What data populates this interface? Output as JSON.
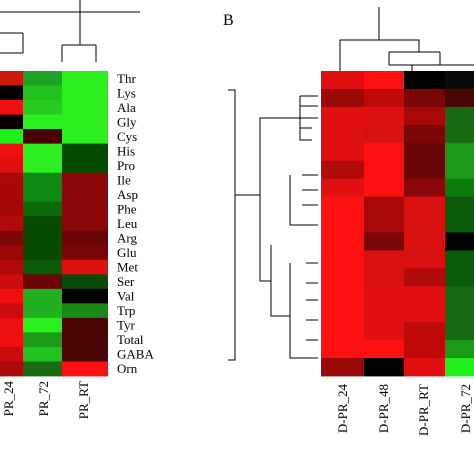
{
  "chart_data": [
    {
      "type": "heatmap",
      "panel": "",
      "rows": [
        "Thr",
        "Lys",
        "Ala",
        "Gly",
        "Cys",
        "His",
        "Pro",
        "Ile",
        "Asp",
        "Phe",
        "Leu",
        "Arg",
        "Glu",
        "Met",
        "Ser",
        "Val",
        "Trp",
        "Tyr",
        "Total",
        "GABA",
        "Orn"
      ],
      "columns": [
        "PR_24",
        "PR_72",
        "PR_RT"
      ],
      "column_labels_visible": [
        "PR_24",
        "PR_72",
        "PR_RT"
      ],
      "cell_colors": [
        [
          "#cc1a0a",
          "#1fa326",
          "#2bf01e"
        ],
        [
          "#050000",
          "#22c21f",
          "#2bf01e"
        ],
        [
          "#f01010",
          "#26cc22",
          "#2bf01e"
        ],
        [
          "#0a0000",
          "#2bf01e",
          "#2bf01e"
        ],
        [
          "#1ef01a",
          "#4a0000",
          "#2bf01e"
        ],
        [
          "#ee1010",
          "#2bf01e",
          "#064a06"
        ],
        [
          "#e01010",
          "#2bf01e",
          "#064a06"
        ],
        [
          "#a80808",
          "#0f8a10",
          "#8a0808"
        ],
        [
          "#a60808",
          "#0f8a10",
          "#8a0808"
        ],
        [
          "#a60808",
          "#0a6a0a",
          "#8a0808"
        ],
        [
          "#b00a0a",
          "#064a06",
          "#8a0808"
        ],
        [
          "#7a0606",
          "#064a06",
          "#6a0606"
        ],
        [
          "#9a0808",
          "#064a06",
          "#7a0606"
        ],
        [
          "#b00a0a",
          "#0a5a0a",
          "#e01010"
        ],
        [
          "#cc0c0c",
          "#6a0606",
          "#0a4a0a"
        ],
        [
          "#ee1010",
          "#22b01f",
          "#000000"
        ],
        [
          "#cc0c0c",
          "#20b020",
          "#1a8a14"
        ],
        [
          "#ee1010",
          "#2bf01e",
          "#4a0404"
        ],
        [
          "#ee1010",
          "#1a9a18",
          "#4a0404"
        ],
        [
          "#cc0c0c",
          "#22c21f",
          "#4a0404"
        ],
        [
          "#aa0a0a",
          "#1a6a14",
          "#ff1010"
        ]
      ]
    },
    {
      "type": "heatmap",
      "panel": "B",
      "columns": [
        "D-PR_24",
        "D-PR_48",
        "D-PR_RT",
        "D-PR_72"
      ],
      "column_labels_visible": [
        "D-PR_24",
        "D-PR_48",
        "D-PR_RT",
        "D-PR_72"
      ],
      "n_rows": 17,
      "cell_colors": [
        [
          "#e01010",
          "#ff1010",
          "#000000",
          "#0a0a0a"
        ],
        [
          "#9a0808",
          "#c00a0a",
          "#7a0606",
          "#4a0404"
        ],
        [
          "#e01010",
          "#e01010",
          "#a80808",
          "#1a6a14"
        ],
        [
          "#e01010",
          "#d81010",
          "#7a0606",
          "#1a6a14"
        ],
        [
          "#e01010",
          "#ff1010",
          "#6a0606",
          "#1a9a18"
        ],
        [
          "#b00a0a",
          "#ff1010",
          "#6a0606",
          "#1a9a18"
        ],
        [
          "#e01010",
          "#ff1010",
          "#8a0808",
          "#0a7a0a"
        ],
        [
          "#ff1010",
          "#a80808",
          "#d81010",
          "#0a5a0a"
        ],
        [
          "#ff1010",
          "#a80808",
          "#d81010",
          "#0a5a0a"
        ],
        [
          "#ff1010",
          "#7a0606",
          "#d81010",
          "#000000"
        ],
        [
          "#ff1010",
          "#d81010",
          "#d81010",
          "#0a5a0a"
        ],
        [
          "#ff1010",
          "#d81010",
          "#b00a0a",
          "#0a5a0a"
        ],
        [
          "#ff1010",
          "#e01010",
          "#e01010",
          "#1a6a14"
        ],
        [
          "#ff1010",
          "#e01010",
          "#e01010",
          "#1a6a14"
        ],
        [
          "#ff1010",
          "#e01010",
          "#c00a0a",
          "#1a6a14"
        ],
        [
          "#ff1010",
          "#ff1010",
          "#c00a0a",
          "#1a9a18"
        ],
        [
          "#9a0808",
          "#000000",
          "#e01010",
          "#1ef01a"
        ]
      ]
    }
  ]
}
